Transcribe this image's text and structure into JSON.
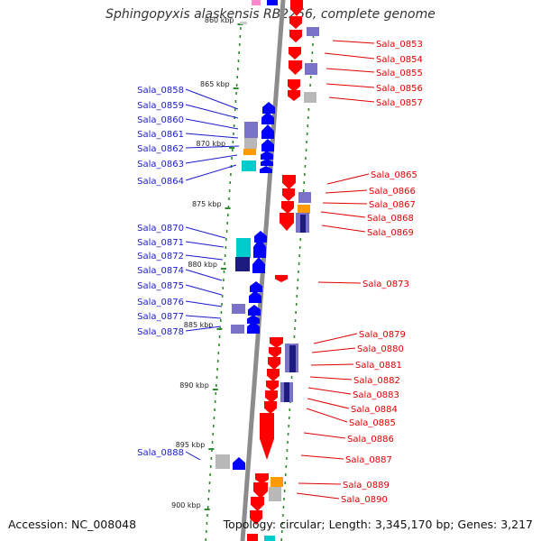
{
  "title": "Sphingopyxis alaskensis RB2256, complete genome",
  "accession_label": "Accession: NC_008048",
  "topology_label": "Topology: circular; Length: 3,345,170 bp; Genes: 3,217",
  "ticks": [
    {
      "label": "860 kbp"
    },
    {
      "label": "865 kbp"
    },
    {
      "label": "870 kbp"
    },
    {
      "label": "875 kbp"
    },
    {
      "label": "880 kbp"
    },
    {
      "label": "885 kbp"
    },
    {
      "label": "890 kbp"
    },
    {
      "label": "895 kbp"
    },
    {
      "label": "900 kbp"
    }
  ],
  "colors": {
    "forward": "#0000ff",
    "reverse": "#ff0000",
    "backbone": "#8c8c8c",
    "tick": "#2e8b2e",
    "gray_box": "#b8b8b8",
    "purple_box": "#7a72c8",
    "navy_box": "#1c1c80",
    "cyan_box": "#00cccc",
    "orange_box": "#ff9a00"
  },
  "left_genes": [
    {
      "name": "Sala_0858"
    },
    {
      "name": "Sala_0859"
    },
    {
      "name": "Sala_0860"
    },
    {
      "name": "Sala_0861"
    },
    {
      "name": "Sala_0862"
    },
    {
      "name": "Sala_0863"
    },
    {
      "name": "Sala_0864"
    },
    {
      "name": "Sala_0870"
    },
    {
      "name": "Sala_0871"
    },
    {
      "name": "Sala_0872"
    },
    {
      "name": "Sala_0874"
    },
    {
      "name": "Sala_0875"
    },
    {
      "name": "Sala_0876"
    },
    {
      "name": "Sala_0877"
    },
    {
      "name": "Sala_0878"
    },
    {
      "name": "Sala_0888"
    }
  ],
  "right_genes": [
    {
      "name": "Sala_0853"
    },
    {
      "name": "Sala_0854"
    },
    {
      "name": "Sala_0855"
    },
    {
      "name": "Sala_0856"
    },
    {
      "name": "Sala_0857"
    },
    {
      "name": "Sala_0865"
    },
    {
      "name": "Sala_0866"
    },
    {
      "name": "Sala_0867"
    },
    {
      "name": "Sala_0868"
    },
    {
      "name": "Sala_0869"
    },
    {
      "name": "Sala_0873"
    },
    {
      "name": "Sala_0879"
    },
    {
      "name": "Sala_0880"
    },
    {
      "name": "Sala_0881"
    },
    {
      "name": "Sala_0882"
    },
    {
      "name": "Sala_0883"
    },
    {
      "name": "Sala_0884"
    },
    {
      "name": "Sala_0885"
    },
    {
      "name": "Sala_0886"
    },
    {
      "name": "Sala_0887"
    },
    {
      "name": "Sala_0889"
    },
    {
      "name": "Sala_0890"
    }
  ]
}
